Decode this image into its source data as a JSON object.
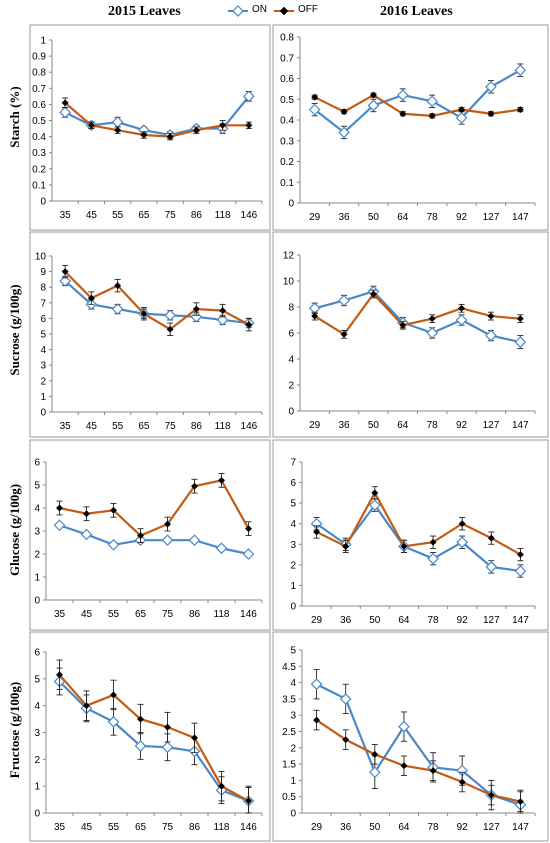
{
  "figure": {
    "left_title": "2015 Leaves",
    "right_title": "2016 Leaves",
    "legend": [
      {
        "name": "ON",
        "color": "#4a88c7",
        "marker": "open-diamond"
      },
      {
        "name": "OFF",
        "color": "#c55a11",
        "marker": "filled-diamond"
      }
    ],
    "row_labels": [
      "Starch (%)",
      "Sucrose    (g/100g)",
      "Glucose (g/100g)",
      "Fructose (g/100g)"
    ]
  },
  "chart_data": [
    {
      "type": "line",
      "panel": "2015 Starch",
      "categories": [
        "35",
        "45",
        "55",
        "65",
        "75",
        "86",
        "118",
        "146"
      ],
      "ylim": [
        0,
        1
      ],
      "ystep": 0.1,
      "yticks": [
        "0",
        "0.1",
        "0.2",
        "0.3",
        "0.4",
        "0.5",
        "0.6",
        "0.7",
        "0.8",
        "0.9",
        "1"
      ],
      "series": [
        {
          "name": "ON",
          "values": [
            0.55,
            0.47,
            0.49,
            0.44,
            0.41,
            0.45,
            0.45,
            0.65
          ],
          "err": [
            0.03,
            0.02,
            0.03,
            0.02,
            0.02,
            0.02,
            0.03,
            0.03
          ]
        },
        {
          "name": "OFF",
          "values": [
            0.61,
            0.47,
            0.44,
            0.41,
            0.4,
            0.44,
            0.47,
            0.47
          ],
          "err": [
            0.03,
            0.02,
            0.02,
            0.02,
            0.02,
            0.02,
            0.03,
            0.02
          ]
        }
      ]
    },
    {
      "type": "line",
      "panel": "2016 Starch",
      "categories": [
        "29",
        "36",
        "50",
        "64",
        "78",
        "92",
        "127",
        "147"
      ],
      "ylim": [
        0,
        0.8
      ],
      "ystep": 0.1,
      "yticks": [
        "0",
        "0.1",
        "0.2",
        "0.3",
        "0.4",
        "0.5",
        "0.6",
        "0.7",
        "0.8"
      ],
      "series": [
        {
          "name": "ON",
          "values": [
            0.45,
            0.34,
            0.47,
            0.52,
            0.49,
            0.41,
            0.56,
            0.64
          ],
          "err": [
            0.03,
            0.03,
            0.03,
            0.03,
            0.03,
            0.03,
            0.03,
            0.03
          ]
        },
        {
          "name": "OFF",
          "values": [
            0.51,
            0.44,
            0.52,
            0.43,
            0.42,
            0.45,
            0.43,
            0.45
          ],
          "err": [
            0.01,
            0.01,
            0.01,
            0.01,
            0.01,
            0.01,
            0.01,
            0.01
          ]
        }
      ]
    },
    {
      "type": "line",
      "panel": "2015 Sucrose",
      "categories": [
        "35",
        "45",
        "55",
        "65",
        "75",
        "86",
        "118",
        "146"
      ],
      "ylim": [
        0,
        10
      ],
      "ystep": 1,
      "yticks": [
        "0",
        "1",
        "2",
        "3",
        "4",
        "5",
        "6",
        "7",
        "8",
        "9",
        "10"
      ],
      "series": [
        {
          "name": "ON",
          "values": [
            8.4,
            6.9,
            6.6,
            6.3,
            6.2,
            6.1,
            5.9,
            5.7
          ],
          "err": [
            0.3,
            0.3,
            0.3,
            0.3,
            0.3,
            0.3,
            0.3,
            0.3
          ]
        },
        {
          "name": "OFF",
          "values": [
            9.0,
            7.3,
            8.1,
            6.3,
            5.3,
            6.6,
            6.5,
            5.6
          ],
          "err": [
            0.4,
            0.4,
            0.4,
            0.4,
            0.4,
            0.4,
            0.4,
            0.4
          ]
        }
      ]
    },
    {
      "type": "line",
      "panel": "2016 Sucrose",
      "categories": [
        "29",
        "36",
        "50",
        "64",
        "78",
        "92",
        "127",
        "147"
      ],
      "ylim": [
        0,
        12
      ],
      "ystep": 2,
      "yticks": [
        "0",
        "2",
        "4",
        "6",
        "8",
        "10",
        "12"
      ],
      "series": [
        {
          "name": "ON",
          "values": [
            7.9,
            8.5,
            9.2,
            6.8,
            6.0,
            7.0,
            5.8,
            5.3
          ],
          "err": [
            0.4,
            0.4,
            0.4,
            0.4,
            0.4,
            0.4,
            0.4,
            0.5
          ]
        },
        {
          "name": "OFF",
          "values": [
            7.3,
            5.9,
            9.0,
            6.6,
            7.1,
            7.9,
            7.3,
            7.1
          ],
          "err": [
            0.3,
            0.3,
            0.3,
            0.3,
            0.3,
            0.3,
            0.3,
            0.3
          ]
        }
      ]
    },
    {
      "type": "line",
      "panel": "2015 Glucose",
      "categories": [
        "35",
        "45",
        "55",
        "65",
        "75",
        "86",
        "118",
        "146"
      ],
      "ylim": [
        0,
        6
      ],
      "ystep": 1,
      "yticks": [
        "0",
        "1",
        "2",
        "3",
        "4",
        "5",
        "6"
      ],
      "series": [
        {
          "name": "ON",
          "values": [
            3.25,
            2.85,
            2.4,
            2.6,
            2.6,
            2.6,
            2.25,
            2.0
          ],
          "err": [
            0.1,
            0.1,
            0.1,
            0.1,
            0.1,
            0.1,
            0.1,
            0.1
          ]
        },
        {
          "name": "OFF",
          "values": [
            4.0,
            3.75,
            3.9,
            2.8,
            3.3,
            4.95,
            5.2,
            3.1
          ],
          "err": [
            0.3,
            0.3,
            0.3,
            0.3,
            0.3,
            0.3,
            0.3,
            0.3
          ]
        }
      ]
    },
    {
      "type": "line",
      "panel": "2016 Glucose",
      "categories": [
        "29",
        "36",
        "50",
        "64",
        "78",
        "92",
        "127",
        "147"
      ],
      "ylim": [
        0,
        7
      ],
      "ystep": 1,
      "yticks": [
        "0",
        "1",
        "2",
        "3",
        "4",
        "5",
        "6",
        "7"
      ],
      "series": [
        {
          "name": "ON",
          "values": [
            4.0,
            3.0,
            4.9,
            2.9,
            2.3,
            3.1,
            1.9,
            1.7
          ],
          "err": [
            0.3,
            0.3,
            0.3,
            0.3,
            0.3,
            0.3,
            0.3,
            0.3
          ]
        },
        {
          "name": "OFF",
          "values": [
            3.6,
            2.9,
            5.5,
            2.9,
            3.1,
            4.0,
            3.3,
            2.5
          ],
          "err": [
            0.3,
            0.3,
            0.3,
            0.3,
            0.3,
            0.3,
            0.3,
            0.3
          ]
        }
      ]
    },
    {
      "type": "line",
      "panel": "2015 Fructose",
      "categories": [
        "35",
        "45",
        "55",
        "65",
        "75",
        "86",
        "118",
        "146"
      ],
      "ylim": [
        0,
        6
      ],
      "ystep": 1,
      "yticks": [
        "0",
        "1",
        "2",
        "3",
        "4",
        "5",
        "6"
      ],
      "series": [
        {
          "name": "ON",
          "values": [
            4.9,
            3.9,
            3.4,
            2.5,
            2.45,
            2.3,
            0.85,
            0.45
          ],
          "err": [
            0.5,
            0.5,
            0.5,
            0.5,
            0.5,
            0.5,
            0.5,
            0.5
          ]
        },
        {
          "name": "OFF",
          "values": [
            5.15,
            4.0,
            4.4,
            3.5,
            3.2,
            2.8,
            1.0,
            0.45
          ],
          "err": [
            0.55,
            0.55,
            0.55,
            0.55,
            0.55,
            0.55,
            0.55,
            0.55
          ]
        }
      ]
    },
    {
      "type": "line",
      "panel": "2016 Fructose",
      "categories": [
        "29",
        "36",
        "50",
        "64",
        "78",
        "92",
        "127",
        "147"
      ],
      "ylim": [
        0,
        5
      ],
      "ystep": 0.5,
      "yticks": [
        "0",
        "0.5",
        "1",
        "1.5",
        "2",
        "2.5",
        "3",
        "3.5",
        "4",
        "4.5",
        "5"
      ],
      "series": [
        {
          "name": "ON",
          "values": [
            3.95,
            3.5,
            1.25,
            2.65,
            1.4,
            1.3,
            0.55,
            0.25
          ],
          "err": [
            0.45,
            0.45,
            0.5,
            0.45,
            0.45,
            0.45,
            0.45,
            0.45
          ]
        },
        {
          "name": "OFF",
          "values": [
            2.85,
            2.25,
            1.8,
            1.45,
            1.3,
            0.95,
            0.55,
            0.35
          ],
          "err": [
            0.3,
            0.3,
            0.3,
            0.3,
            0.3,
            0.3,
            0.3,
            0.3
          ]
        }
      ]
    }
  ]
}
